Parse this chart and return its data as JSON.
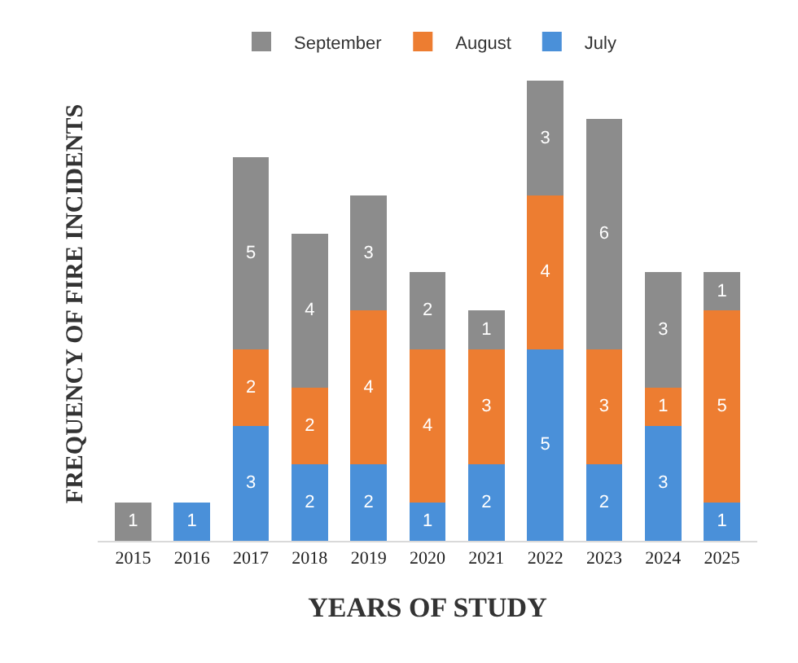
{
  "chart_data": {
    "type": "bar",
    "stacked": true,
    "xlabel": "YEARS OF STUDY",
    "ylabel": "FREQUENCY OF FIRE INCIDENTS",
    "categories": [
      "2015",
      "2016",
      "2017",
      "2018",
      "2019",
      "2020",
      "2021",
      "2022",
      "2023",
      "2024",
      "2025"
    ],
    "series": [
      {
        "name": "July",
        "color": "#4a90d9",
        "values": [
          null,
          1,
          3,
          2,
          2,
          1,
          2,
          5,
          2,
          3,
          1
        ]
      },
      {
        "name": "August",
        "color": "#ed7d31",
        "values": [
          null,
          null,
          2,
          2,
          4,
          4,
          3,
          4,
          3,
          1,
          5
        ]
      },
      {
        "name": "September",
        "color": "#8c8c8c",
        "values": [
          1,
          null,
          5,
          4,
          3,
          2,
          1,
          3,
          6,
          3,
          1
        ]
      }
    ],
    "data_labels": true,
    "legend": "top",
    "tick_labels": "x"
  }
}
